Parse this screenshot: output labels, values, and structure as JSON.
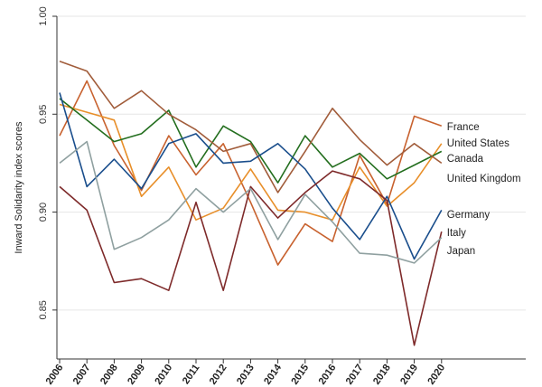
{
  "chart_data": {
    "type": "line",
    "title": "",
    "xlabel": "",
    "ylabel": "Inward Solidarity index scores",
    "x": [
      "2006",
      "2007",
      "2008",
      "2009",
      "2010",
      "2011",
      "2012",
      "2013",
      "2014",
      "2015",
      "2016",
      "2017",
      "2018",
      "2019",
      "2020"
    ],
    "ylim": [
      0.825,
      1.0
    ],
    "yticks": [
      "0.85",
      "0.90",
      "0.95",
      "1.00"
    ],
    "ytick_values": [
      0.85,
      0.9,
      0.95,
      1.0
    ],
    "grid": true,
    "legend": "labels at line ends",
    "series": [
      {
        "name": "France",
        "color": "#c8622f",
        "values": [
          0.939,
          0.967,
          0.934,
          0.911,
          0.939,
          0.919,
          0.935,
          0.905,
          0.873,
          0.894,
          0.885,
          0.929,
          0.904,
          0.949,
          0.944
        ]
      },
      {
        "name": "United States",
        "color": "#e88f2a",
        "values": [
          0.955,
          0.951,
          0.947,
          0.908,
          0.923,
          0.896,
          0.902,
          0.922,
          0.901,
          0.9,
          0.896,
          0.923,
          0.903,
          0.915,
          0.935
        ]
      },
      {
        "name": "Canada",
        "color": "#236e1e",
        "values": [
          0.958,
          0.947,
          0.936,
          0.94,
          0.952,
          0.923,
          0.944,
          0.936,
          0.915,
          0.939,
          0.923,
          0.93,
          0.917,
          0.924,
          0.931
        ]
      },
      {
        "name": "United Kingdom",
        "color": "#a15c3a",
        "values": [
          0.977,
          0.972,
          0.953,
          0.962,
          0.95,
          0.942,
          0.931,
          0.935,
          0.91,
          0.931,
          0.953,
          0.937,
          0.924,
          0.935,
          0.925
        ]
      },
      {
        "name": "Germany",
        "color": "#1a4e8c",
        "values": [
          0.961,
          0.913,
          0.927,
          0.912,
          0.935,
          0.94,
          0.925,
          0.926,
          0.935,
          0.922,
          0.902,
          0.886,
          0.908,
          0.876,
          0.901
        ]
      },
      {
        "name": "Italy",
        "color": "#7e2a2a",
        "values": [
          0.913,
          0.901,
          0.864,
          0.866,
          0.86,
          0.905,
          0.86,
          0.913,
          0.897,
          0.91,
          0.921,
          0.917,
          0.906,
          0.832,
          0.89
        ]
      },
      {
        "name": "Japan",
        "color": "#8fa0a0",
        "values": [
          0.925,
          0.936,
          0.881,
          0.887,
          0.896,
          0.912,
          0.9,
          0.912,
          0.886,
          0.909,
          0.895,
          0.879,
          0.878,
          0.874,
          0.887
        ]
      }
    ]
  }
}
